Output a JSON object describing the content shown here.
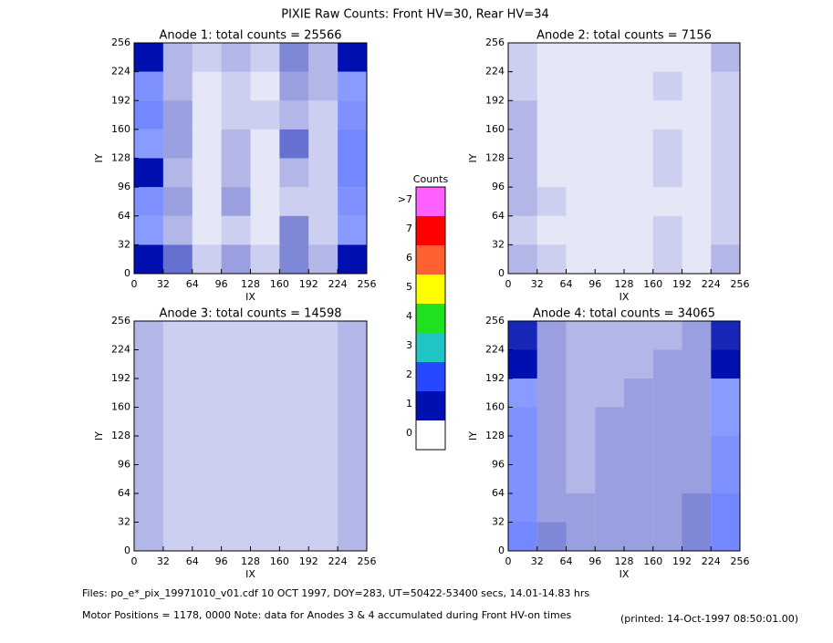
{
  "title": "PIXIE Raw Counts:  Front HV=30, Rear HV=34",
  "chart_data": [
    {
      "type": "heatmap",
      "title": "Anode 1: total counts = 25566",
      "xlabel": "IX",
      "ylabel": "IY",
      "xlim": [
        0,
        256
      ],
      "ylim": [
        0,
        256
      ],
      "xticks": [
        0,
        32,
        64,
        96,
        128,
        160,
        192,
        224,
        256
      ],
      "yticks": [
        0,
        32,
        64,
        96,
        128,
        160,
        192,
        224,
        256
      ],
      "values": [
        [
          1.0,
          0.6,
          0.2,
          0.4,
          0.2,
          0.5,
          0.3,
          1.0
        ],
        [
          1.1,
          0.3,
          0.1,
          0.2,
          0.1,
          0.5,
          0.2,
          1.1
        ],
        [
          1.2,
          0.4,
          0.1,
          0.4,
          0.1,
          0.2,
          0.2,
          1.2
        ],
        [
          1.0,
          0.3,
          0.1,
          0.3,
          0.1,
          0.3,
          0.2,
          1.3
        ],
        [
          1.1,
          0.4,
          0.1,
          0.3,
          0.1,
          0.6,
          0.2,
          1.3
        ],
        [
          1.3,
          0.4,
          0.1,
          0.2,
          0.2,
          0.3,
          0.2,
          1.2
        ],
        [
          1.2,
          0.3,
          0.1,
          0.2,
          0.1,
          0.4,
          0.3,
          1.1
        ],
        [
          1.0,
          0.3,
          0.2,
          0.3,
          0.2,
          0.5,
          0.3,
          1.0
        ]
      ]
    },
    {
      "type": "heatmap",
      "title": "Anode 2: total counts = 7156",
      "xlabel": "IX",
      "ylabel": "IY",
      "xlim": [
        0,
        256
      ],
      "ylim": [
        0,
        256
      ],
      "xticks": [
        0,
        32,
        64,
        96,
        128,
        160,
        192,
        224,
        256
      ],
      "yticks": [
        0,
        32,
        64,
        96,
        128,
        160,
        192,
        224,
        256
      ],
      "values": [
        [
          0.3,
          0.2,
          0.1,
          0.1,
          0.1,
          0.2,
          0.1,
          0.3
        ],
        [
          0.2,
          0.1,
          0.1,
          0.1,
          0.1,
          0.2,
          0.1,
          0.2
        ],
        [
          0.3,
          0.2,
          0.1,
          0.1,
          0.1,
          0.1,
          0.1,
          0.2
        ],
        [
          0.3,
          0.1,
          0.1,
          0.1,
          0.1,
          0.2,
          0.1,
          0.2
        ],
        [
          0.3,
          0.1,
          0.1,
          0.1,
          0.1,
          0.2,
          0.1,
          0.2
        ],
        [
          0.3,
          0.1,
          0.1,
          0.1,
          0.1,
          0.1,
          0.1,
          0.2
        ],
        [
          0.2,
          0.1,
          0.1,
          0.1,
          0.1,
          0.2,
          0.1,
          0.2
        ],
        [
          0.2,
          0.1,
          0.1,
          0.1,
          0.1,
          0.1,
          0.1,
          0.3
        ]
      ]
    },
    {
      "type": "heatmap",
      "title": "Anode 3: total counts = 14598",
      "xlabel": "IX",
      "ylabel": "IY",
      "xlim": [
        0,
        256
      ],
      "ylim": [
        0,
        256
      ],
      "xticks": [
        0,
        32,
        64,
        96,
        128,
        160,
        192,
        224,
        256
      ],
      "yticks": [
        0,
        32,
        64,
        96,
        128,
        160,
        192,
        224,
        256
      ],
      "values": [
        [
          0.3,
          0.2,
          0.2,
          0.2,
          0.2,
          0.2,
          0.2,
          0.3
        ],
        [
          0.3,
          0.2,
          0.2,
          0.2,
          0.2,
          0.2,
          0.2,
          0.3
        ],
        [
          0.3,
          0.2,
          0.2,
          0.2,
          0.2,
          0.2,
          0.2,
          0.3
        ],
        [
          0.3,
          0.2,
          0.2,
          0.2,
          0.2,
          0.2,
          0.2,
          0.3
        ],
        [
          0.3,
          0.2,
          0.2,
          0.2,
          0.2,
          0.2,
          0.2,
          0.3
        ],
        [
          0.3,
          0.2,
          0.2,
          0.2,
          0.2,
          0.2,
          0.2,
          0.3
        ],
        [
          0.3,
          0.2,
          0.2,
          0.2,
          0.2,
          0.2,
          0.2,
          0.3
        ],
        [
          0.3,
          0.2,
          0.2,
          0.2,
          0.2,
          0.2,
          0.2,
          0.3
        ]
      ]
    },
    {
      "type": "heatmap",
      "title": "Anode 4: total counts = 34065",
      "xlabel": "IX",
      "ylabel": "IY",
      "xlim": [
        0,
        256
      ],
      "ylim": [
        0,
        256
      ],
      "xticks": [
        0,
        32,
        64,
        96,
        128,
        160,
        192,
        224,
        256
      ],
      "yticks": [
        0,
        32,
        64,
        96,
        128,
        160,
        192,
        224,
        256
      ],
      "values": [
        [
          1.3,
          0.5,
          0.4,
          0.4,
          0.4,
          0.4,
          0.5,
          1.3
        ],
        [
          1.2,
          0.4,
          0.4,
          0.4,
          0.4,
          0.4,
          0.5,
          1.3
        ],
        [
          1.2,
          0.4,
          0.3,
          0.4,
          0.4,
          0.4,
          0.4,
          1.2
        ],
        [
          1.2,
          0.4,
          0.3,
          0.4,
          0.4,
          0.4,
          0.4,
          1.2
        ],
        [
          1.2,
          0.4,
          0.3,
          0.4,
          0.4,
          0.4,
          0.4,
          1.1
        ],
        [
          1.1,
          0.4,
          0.3,
          0.3,
          0.4,
          0.4,
          0.4,
          1.1
        ],
        [
          1.0,
          0.4,
          0.3,
          0.3,
          0.3,
          0.4,
          0.4,
          1.0
        ],
        [
          0.9,
          0.4,
          0.3,
          0.3,
          0.3,
          0.3,
          0.4,
          0.9
        ]
      ]
    }
  ],
  "colorbar": {
    "title": "Counts",
    "labels": [
      "0",
      "1",
      "2",
      "3",
      "4",
      "5",
      "6",
      "7",
      ">7"
    ],
    "colors": [
      "#ffffff",
      "#0010b0",
      "#2848ff",
      "#20c4c4",
      "#20e020",
      "#ffff00",
      "#ff6030",
      "#ff0000",
      "#ff60ff"
    ]
  },
  "footer": {
    "files": "Files: po_e*_pix_19971010_v01.cdf    10 OCT 1997, DOY=283, UT=50422-53400 secs, 14.01-14.83 hrs",
    "motor": "Motor Positions = 1178, 0000    Note: data for Anodes 3 & 4 accumulated during Front HV-on times",
    "printed": "(printed: 14-Oct-1997 08:50:01.00)"
  }
}
